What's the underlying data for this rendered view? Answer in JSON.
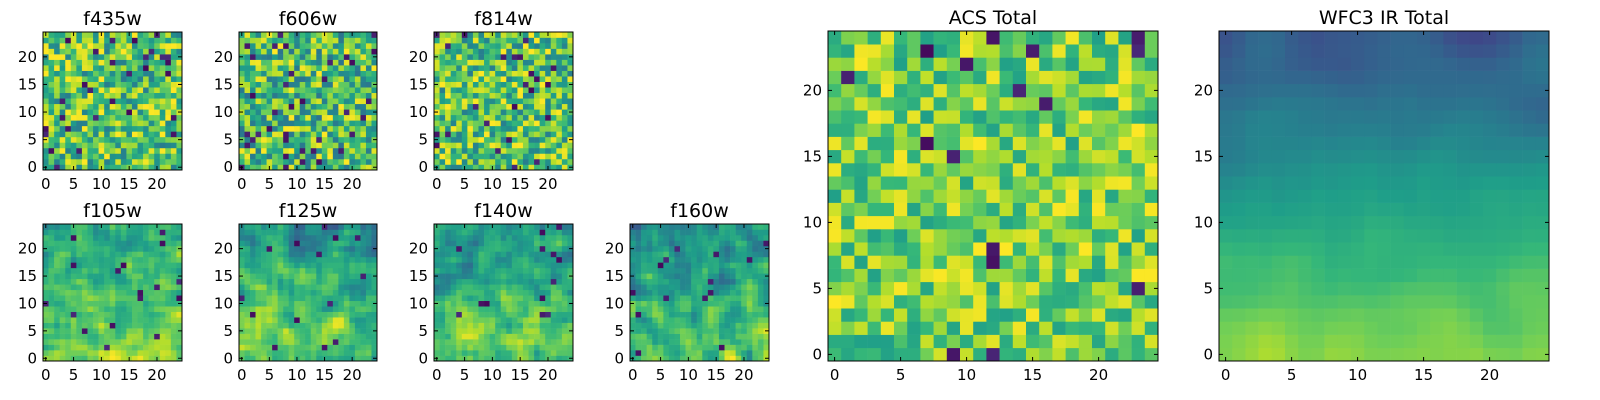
{
  "figure": {
    "colormap": "viridis",
    "colormap_stops": [
      "#440154",
      "#482878",
      "#3e4989",
      "#31688e",
      "#26828e",
      "#1f9e89",
      "#35b779",
      "#6ece58",
      "#b5de2b",
      "#fde725"
    ]
  },
  "chart_data": [
    {
      "id": "f435w",
      "type": "heatmap",
      "title": "f435w",
      "grid_size": [
        25,
        25
      ],
      "xlim": [
        -0.5,
        24.5
      ],
      "ylim": [
        -0.5,
        24.5
      ],
      "xticks": [
        0,
        5,
        10,
        15,
        20
      ],
      "yticks": [
        0,
        5,
        10,
        15,
        20
      ],
      "xtick_labels": [
        "0",
        "5",
        "10",
        "15",
        "20"
      ],
      "ytick_labels": [
        "0",
        "5",
        "10",
        "15",
        "20"
      ],
      "value_range": [
        0,
        1
      ],
      "description_of_values": "noisy field, mostly 0.5-0.95 with scattered dark pixels",
      "pattern": {
        "base": 0.72,
        "spread": 0.3,
        "gradient": 0.0,
        "dark_fraction": 0.05,
        "smooth": 0,
        "seed": 11
      }
    },
    {
      "id": "f606w",
      "type": "heatmap",
      "title": "f606w",
      "grid_size": [
        25,
        25
      ],
      "xlim": [
        -0.5,
        24.5
      ],
      "ylim": [
        -0.5,
        24.5
      ],
      "xticks": [
        0,
        5,
        10,
        15,
        20
      ],
      "yticks": [
        0,
        5,
        10,
        15,
        20
      ],
      "xtick_labels": [
        "0",
        "5",
        "10",
        "15",
        "20"
      ],
      "ytick_labels": [
        "0",
        "5",
        "10",
        "15",
        "20"
      ],
      "value_range": [
        0,
        1
      ],
      "pattern": {
        "base": 0.7,
        "spread": 0.32,
        "gradient": 0.0,
        "dark_fraction": 0.05,
        "smooth": 0,
        "seed": 23
      }
    },
    {
      "id": "f814w",
      "type": "heatmap",
      "title": "f814w",
      "grid_size": [
        25,
        25
      ],
      "xlim": [
        -0.5,
        24.5
      ],
      "ylim": [
        -0.5,
        24.5
      ],
      "xticks": [
        0,
        5,
        10,
        15,
        20
      ],
      "yticks": [
        0,
        5,
        10,
        15,
        20
      ],
      "xtick_labels": [
        "0",
        "5",
        "10",
        "15",
        "20"
      ],
      "ytick_labels": [
        "0",
        "5",
        "10",
        "15",
        "20"
      ],
      "value_range": [
        0,
        1
      ],
      "pattern": {
        "base": 0.72,
        "spread": 0.3,
        "gradient": 0.0,
        "dark_fraction": 0.04,
        "smooth": 0,
        "seed": 37
      }
    },
    {
      "id": "f105w",
      "type": "heatmap",
      "title": "f105w",
      "grid_size": [
        25,
        25
      ],
      "xlim": [
        -0.5,
        24.5
      ],
      "ylim": [
        -0.5,
        24.5
      ],
      "xticks": [
        0,
        5,
        10,
        15,
        20
      ],
      "yticks": [
        0,
        5,
        10,
        15,
        20
      ],
      "xtick_labels": [
        "0",
        "5",
        "10",
        "15",
        "20"
      ],
      "ytick_labels": [
        "0",
        "5",
        "10",
        "15",
        "20"
      ],
      "value_range": [
        0,
        1
      ],
      "pattern": {
        "base": 0.7,
        "spread": 0.22,
        "gradient": 0.22,
        "dark_fraction": 0.02,
        "smooth": 1,
        "seed": 41
      }
    },
    {
      "id": "f125w",
      "type": "heatmap",
      "title": "f125w",
      "grid_size": [
        25,
        25
      ],
      "xlim": [
        -0.5,
        24.5
      ],
      "ylim": [
        -0.5,
        24.5
      ],
      "xticks": [
        0,
        5,
        10,
        15,
        20
      ],
      "yticks": [
        0,
        5,
        10,
        15,
        20
      ],
      "xtick_labels": [
        "0",
        "5",
        "10",
        "15",
        "20"
      ],
      "ytick_labels": [
        "0",
        "5",
        "10",
        "15",
        "20"
      ],
      "value_range": [
        0,
        1
      ],
      "pattern": {
        "base": 0.66,
        "spread": 0.24,
        "gradient": 0.26,
        "dark_fraction": 0.03,
        "smooth": 1,
        "seed": 53
      }
    },
    {
      "id": "f140w",
      "type": "heatmap",
      "title": "f140w",
      "grid_size": [
        25,
        25
      ],
      "xlim": [
        -0.5,
        24.5
      ],
      "ylim": [
        -0.5,
        24.5
      ],
      "xticks": [
        0,
        5,
        10,
        15,
        20
      ],
      "yticks": [
        0,
        5,
        10,
        15,
        20
      ],
      "xtick_labels": [
        "0",
        "5",
        "10",
        "15",
        "20"
      ],
      "ytick_labels": [
        "0",
        "5",
        "10",
        "15",
        "20"
      ],
      "value_range": [
        0,
        1
      ],
      "pattern": {
        "base": 0.66,
        "spread": 0.24,
        "gradient": 0.28,
        "dark_fraction": 0.02,
        "smooth": 1,
        "seed": 67
      }
    },
    {
      "id": "f160w",
      "type": "heatmap",
      "title": "f160w",
      "grid_size": [
        25,
        25
      ],
      "xlim": [
        -0.5,
        24.5
      ],
      "ylim": [
        -0.5,
        24.5
      ],
      "xticks": [
        0,
        5,
        10,
        15,
        20
      ],
      "yticks": [
        0,
        5,
        10,
        15,
        20
      ],
      "xtick_labels": [
        "0",
        "5",
        "10",
        "15",
        "20"
      ],
      "ytick_labels": [
        "0",
        "5",
        "10",
        "15",
        "20"
      ],
      "value_range": [
        0,
        1
      ],
      "pattern": {
        "base": 0.62,
        "spread": 0.26,
        "gradient": 0.3,
        "dark_fraction": 0.03,
        "smooth": 1,
        "seed": 79
      }
    },
    {
      "id": "acs-total",
      "type": "heatmap",
      "title": "ACS Total",
      "grid_size": [
        25,
        25
      ],
      "xlim": [
        -0.5,
        24.5
      ],
      "ylim": [
        -0.5,
        24.5
      ],
      "xticks": [
        0,
        5,
        10,
        15,
        20
      ],
      "yticks": [
        0,
        5,
        10,
        15,
        20
      ],
      "xtick_labels": [
        "0",
        "5",
        "10",
        "15",
        "20"
      ],
      "ytick_labels": [
        "0",
        "5",
        "10",
        "15",
        "20"
      ],
      "value_range": [
        0,
        1
      ],
      "pattern": {
        "base": 0.78,
        "spread": 0.22,
        "gradient": 0.0,
        "dark_fraction": 0.03,
        "smooth": 0,
        "seed": 97
      }
    },
    {
      "id": "wfc3-ir-total",
      "type": "heatmap",
      "title": "WFC3 IR Total",
      "grid_size": [
        25,
        25
      ],
      "xlim": [
        -0.5,
        24.5
      ],
      "ylim": [
        -0.5,
        24.5
      ],
      "xticks": [
        0,
        5,
        10,
        15,
        20
      ],
      "yticks": [
        0,
        5,
        10,
        15,
        20
      ],
      "xtick_labels": [
        "0",
        "5",
        "10",
        "15",
        "20"
      ],
      "ytick_labels": [
        "0",
        "5",
        "10",
        "15",
        "20"
      ],
      "value_range": [
        0,
        1
      ],
      "pattern": {
        "base": 0.55,
        "spread": 0.1,
        "gradient": 0.55,
        "dark_fraction": 0.0,
        "smooth": 2,
        "seed": 113
      }
    }
  ]
}
